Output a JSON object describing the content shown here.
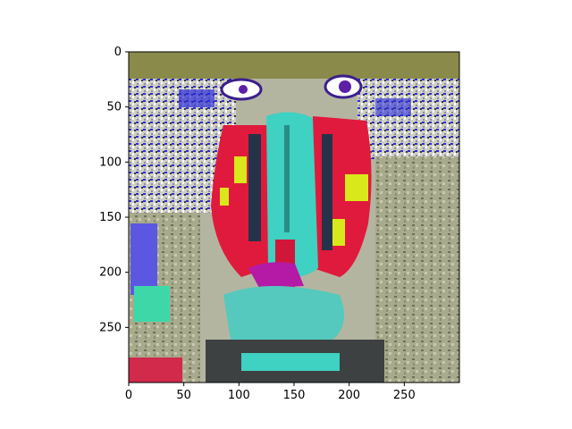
{
  "figure": {
    "image_description_icon": "glitched-mandrill-face-image",
    "colors": {
      "background": "#ffffff",
      "axes_frame": "#000000",
      "red_accent": "#e01a3c",
      "cyan_accent": "#3fd1c1",
      "blue_accent": "#2b2bd9",
      "yellow_accent": "#d8e81a",
      "magenta_accent": "#b51aa6",
      "olive_top": "#8a8a4a",
      "grey_green_background": "#a4a78e"
    },
    "x_axis": {
      "range": [
        0,
        300
      ],
      "ticks": [
        0,
        50,
        100,
        150,
        200,
        250
      ]
    },
    "y_axis": {
      "range": [
        300,
        0
      ],
      "ticks": [
        0,
        50,
        100,
        150,
        200,
        250
      ]
    }
  }
}
